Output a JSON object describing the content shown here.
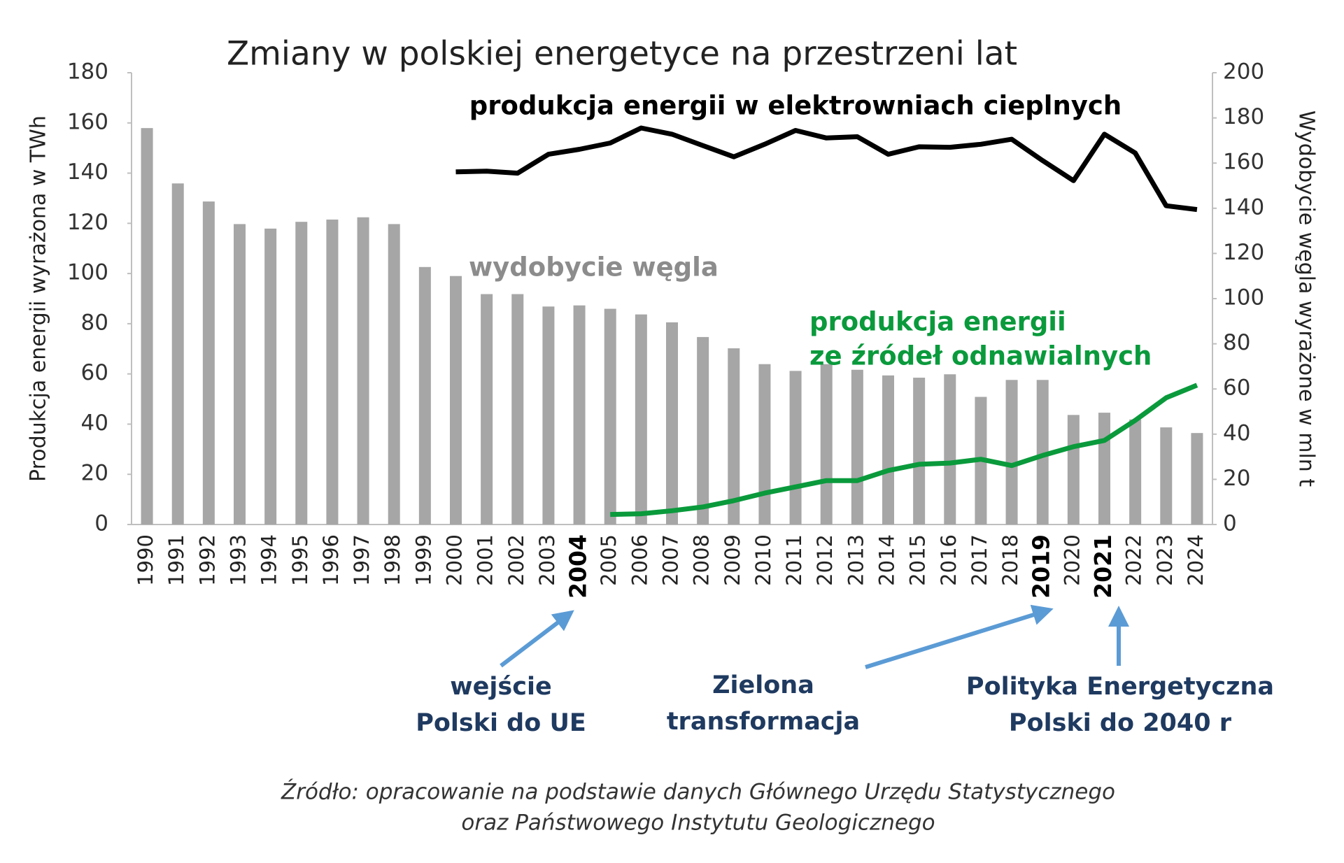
{
  "chart_data": {
    "type": "bar-line",
    "title": "Zmiany w polskiej energetyce na przestrzeni lat",
    "y_label": "Produkcja energii wyrażona w TWh",
    "y2_label": "Wydobycie węgla wyrażone w mln t",
    "categories": [
      "1990",
      "1991",
      "1992",
      "1993",
      "1994",
      "1995",
      "1996",
      "1997",
      "1998",
      "1999",
      "2000",
      "2001",
      "2002",
      "2003",
      "2004",
      "2005",
      "2006",
      "2007",
      "2008",
      "2009",
      "2010",
      "2011",
      "2012",
      "2013",
      "2014",
      "2015",
      "2016",
      "2017",
      "2018",
      "2019",
      "2020",
      "2021",
      "2022",
      "2023",
      "2024"
    ],
    "highlight": [
      "2004",
      "2019",
      "2021"
    ],
    "ylim": [
      0,
      180
    ],
    "yticks": [
      0,
      20,
      40,
      60,
      80,
      100,
      120,
      140,
      160,
      180
    ],
    "y2lim": [
      0,
      200
    ],
    "y2ticks": [
      0,
      20,
      40,
      60,
      80,
      100,
      120,
      140,
      160,
      180,
      200
    ],
    "series": [
      {
        "name": "wydobycie węgla",
        "type": "bar",
        "axis": "y2",
        "color": "#a6a6a6",
        "label_color": "#8c8c8c",
        "values": [
          175.5,
          151,
          143,
          133,
          131,
          134,
          135,
          136,
          133,
          114,
          110,
          102,
          102,
          96.5,
          97,
          95.5,
          93,
          89.5,
          83,
          78,
          71,
          68,
          71,
          68.5,
          66,
          65,
          66.5,
          56.5,
          64,
          64,
          48.5,
          49.5,
          46.5,
          43,
          40.5
        ]
      },
      {
        "name": "produkcja energii w elektrowniach cieplnych",
        "type": "line",
        "axis": "y",
        "color": "#000000",
        "label_color": "#000000",
        "values": [
          null,
          null,
          null,
          null,
          null,
          null,
          null,
          null,
          null,
          null,
          140.5,
          140.8,
          140,
          147.5,
          149.5,
          152,
          158,
          155.5,
          151,
          146.5,
          151.5,
          157,
          154,
          154.5,
          147.5,
          150.5,
          150.3,
          151.5,
          153.5,
          145,
          137,
          155.5,
          148,
          127,
          125.5
        ]
      },
      {
        "name": [
          "produkcja energii",
          "ze źródeł odnawialnych"
        ],
        "type": "line",
        "axis": "y",
        "color": "#0a9a3c",
        "label_color": "#0a9a3c",
        "values": [
          null,
          null,
          null,
          null,
          null,
          null,
          null,
          null,
          null,
          null,
          null,
          null,
          null,
          null,
          null,
          4,
          4.3,
          5.5,
          7,
          9.5,
          12.5,
          15,
          17.5,
          17.5,
          21.5,
          24,
          24.5,
          26,
          23.5,
          27.5,
          31,
          33.5,
          41.5,
          50.5,
          55.5
        ]
      }
    ],
    "annotations": [
      {
        "text": [
          "wejście",
          "Polski do UE"
        ],
        "target": "2004"
      },
      {
        "text": [
          "Zielona",
          "transformacja"
        ],
        "target": "2019"
      },
      {
        "text": [
          "Polityka Energetyczna",
          "Polski do 2040 r"
        ],
        "target": "2021"
      }
    ],
    "source": [
      "Źródło: opracowanie na podstawie danych Głównego Urzędu Statystycznego",
      "oraz Państwowego Instytutu Geologicznego"
    ]
  }
}
